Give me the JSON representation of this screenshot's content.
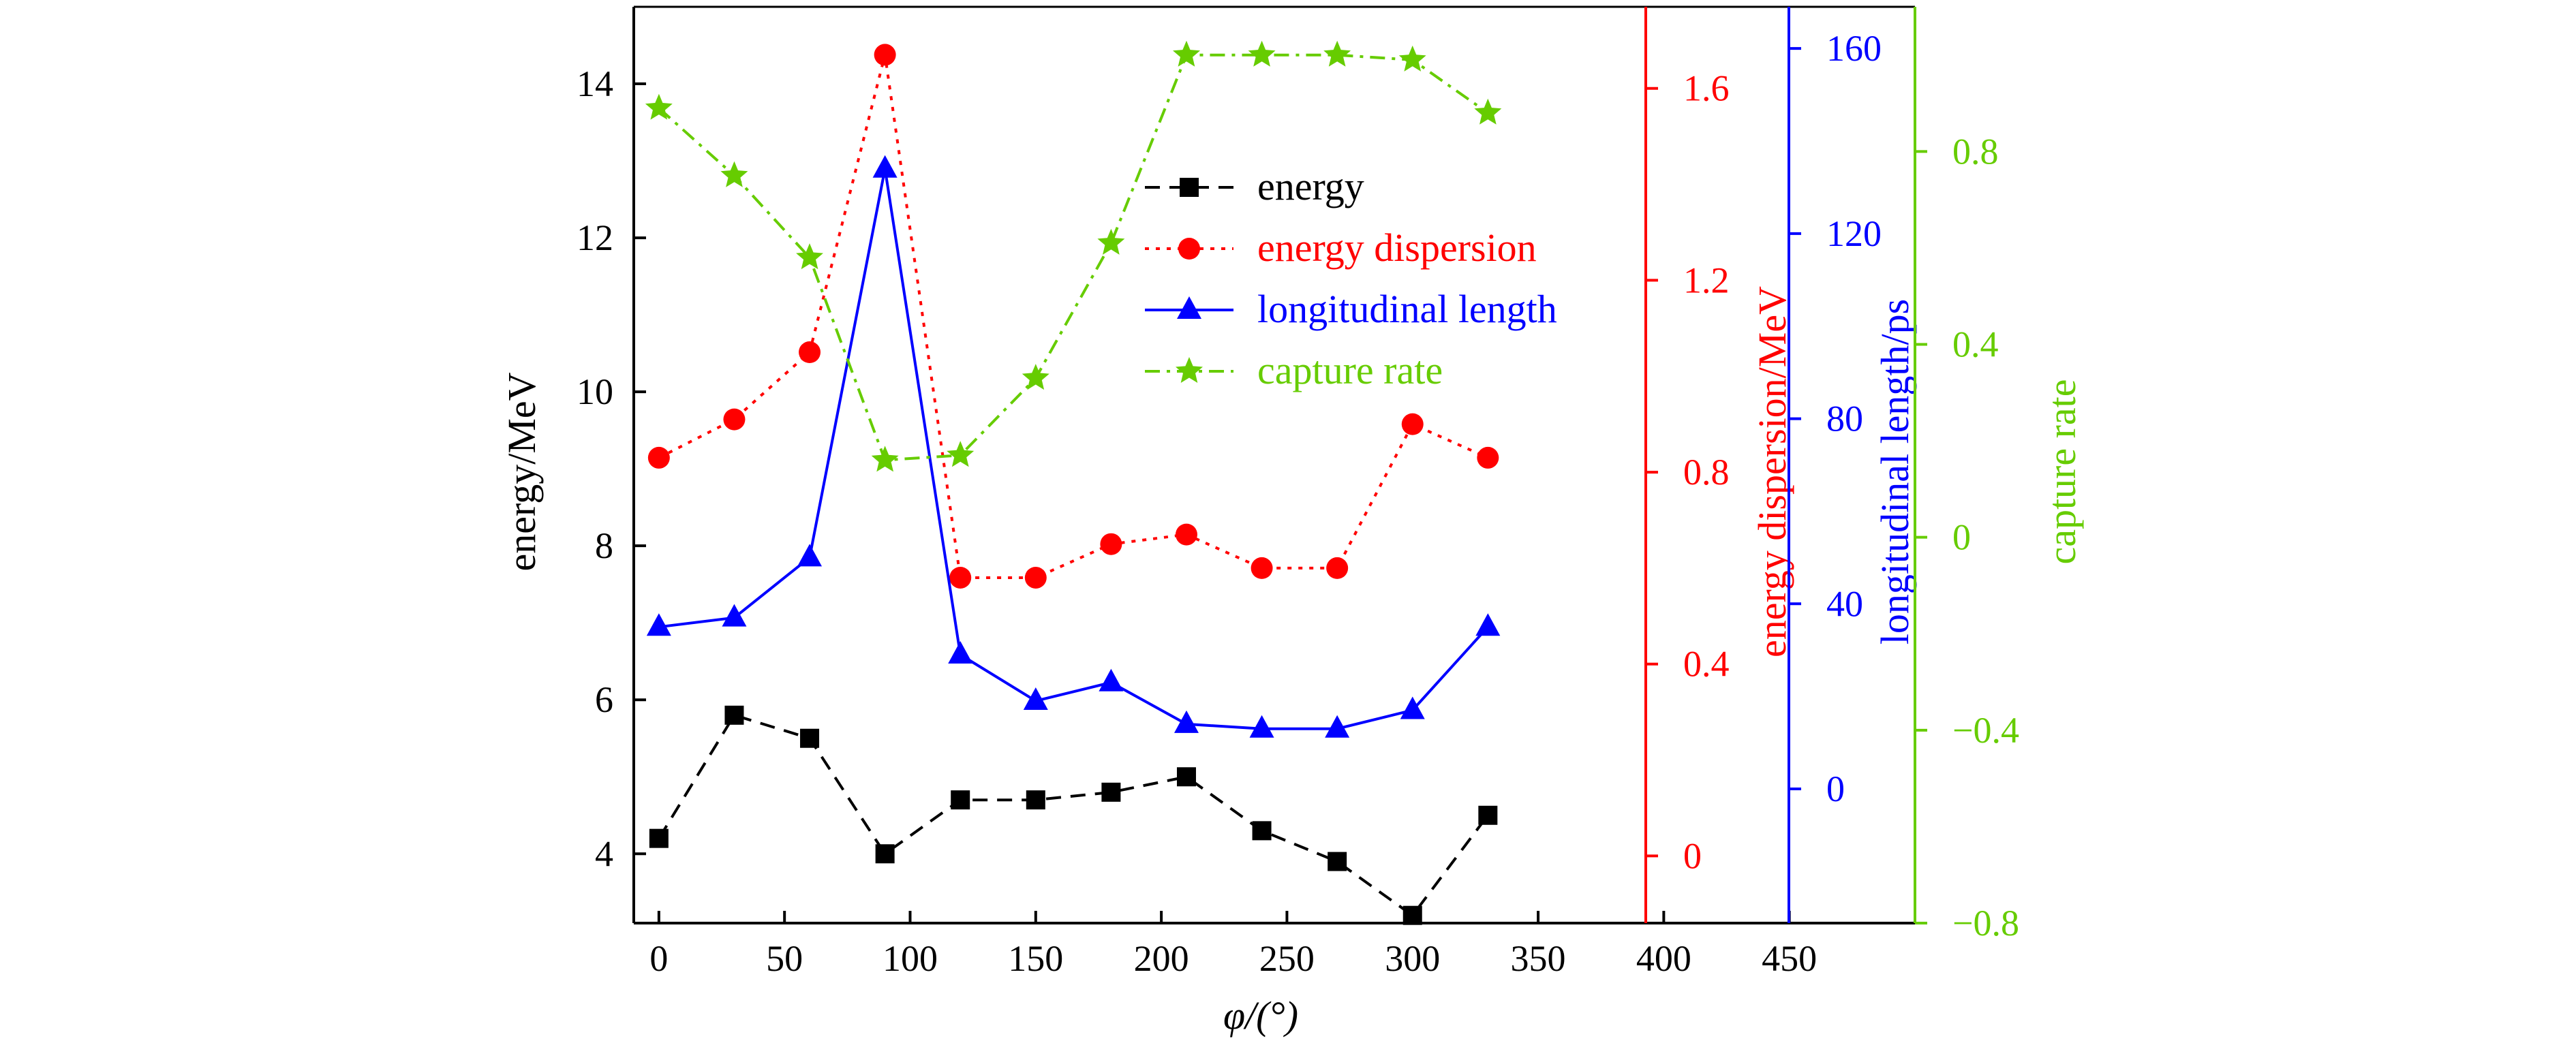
{
  "chart_data": {
    "type": "line",
    "x": [
      0,
      30,
      60,
      90,
      120,
      150,
      180,
      210,
      240,
      270,
      300,
      330
    ],
    "xlabel": "φ/(°)",
    "xlim": [
      -10,
      500
    ],
    "xticks": [
      0,
      50,
      100,
      150,
      200,
      250,
      300,
      350,
      400,
      450
    ],
    "legend_position": "top-center",
    "grid": false,
    "axes": [
      {
        "id": "energy",
        "label": "energy/MeV",
        "side": "left",
        "color": "#000000",
        "lim": [
          3.1,
          15.0
        ],
        "ticks": [
          4,
          6,
          8,
          10,
          12,
          14
        ]
      },
      {
        "id": "dispersion",
        "label": "energy dispersion/MeV",
        "side": "right",
        "color": "#ff0000",
        "lim": [
          -0.14,
          1.77
        ],
        "ticks": [
          0,
          0.4,
          0.8,
          1.2,
          1.6
        ],
        "tick_labels": [
          "0",
          "0.4",
          "0.8",
          "1.2",
          "1.6"
        ]
      },
      {
        "id": "length",
        "label": "longitudinal length/ps",
        "side": "right",
        "color": "#0000ff",
        "lim": [
          -29,
          169
        ],
        "ticks": [
          0,
          40,
          80,
          120,
          160
        ]
      },
      {
        "id": "capture",
        "label": "capture rate",
        "side": "right",
        "color": "#66cc00",
        "lim": [
          -0.8,
          1.1
        ],
        "ticks": [
          -0.8,
          -0.4,
          0,
          0.4,
          0.8
        ],
        "tick_labels": [
          "−0.8",
          "−0.4",
          "0",
          "0.4",
          "0.8"
        ]
      }
    ],
    "series": [
      {
        "name": "energy",
        "axis": "energy",
        "color": "#000000",
        "marker": "square",
        "dash": "dashed",
        "values": [
          4.2,
          5.8,
          5.5,
          4.0,
          4.7,
          4.7,
          4.8,
          5.0,
          4.3,
          3.9,
          3.2,
          4.5
        ]
      },
      {
        "name": "energy dispersion",
        "axis": "dispersion",
        "color": "#ff0000",
        "marker": "circle",
        "dash": "dotted",
        "values": [
          0.83,
          0.91,
          1.05,
          1.67,
          0.58,
          0.58,
          0.65,
          0.67,
          0.6,
          0.6,
          0.9,
          0.83
        ]
      },
      {
        "name": "longitudinal length",
        "axis": "length",
        "color": "#0000ff",
        "marker": "triangle",
        "dash": "solid",
        "values": [
          35,
          37,
          50,
          134,
          29,
          19,
          23,
          14,
          13,
          13,
          17,
          35
        ]
      },
      {
        "name": "capture rate",
        "axis": "capture",
        "color": "#66cc00",
        "marker": "star",
        "dash": "dashdot",
        "values": [
          0.89,
          0.75,
          0.58,
          0.16,
          0.17,
          0.33,
          0.61,
          1.0,
          1.0,
          1.0,
          0.99,
          0.88
        ]
      }
    ]
  }
}
